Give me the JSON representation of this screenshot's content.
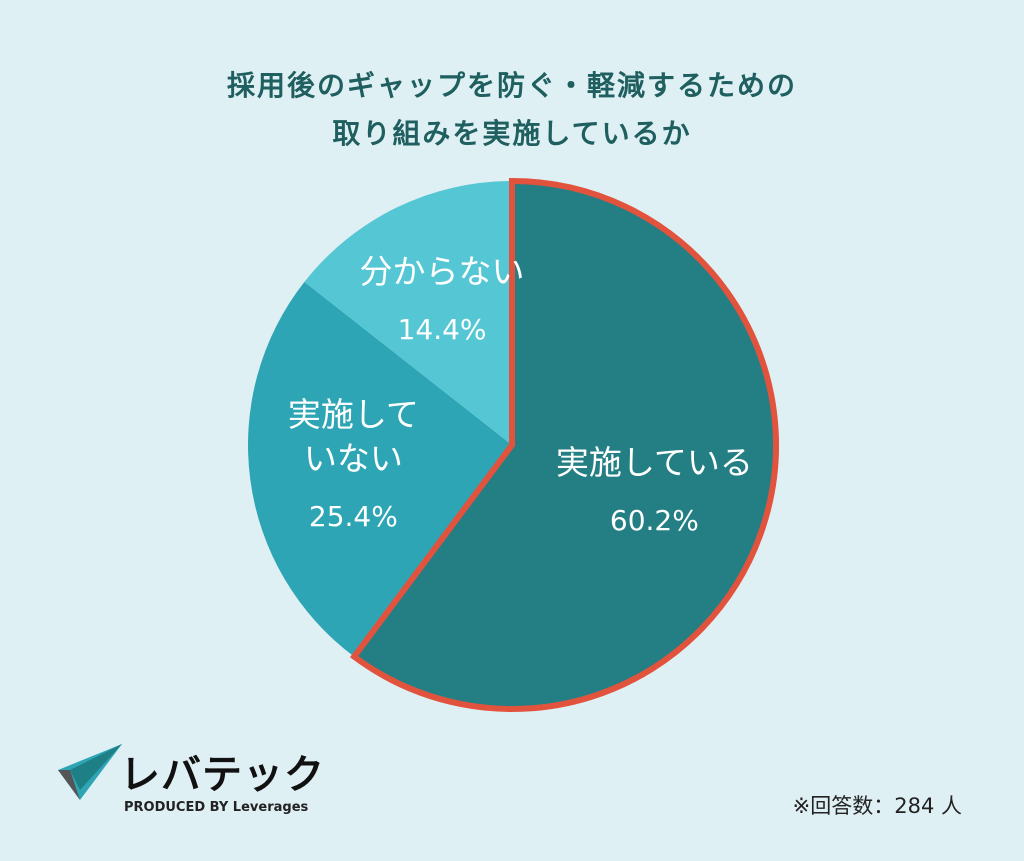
{
  "chart_data": {
    "type": "pie",
    "title": [
      "採用後のギャップを防ぐ・軽減するための",
      "取り組みを実施しているか"
    ],
    "categories": [
      "実施している",
      "実施していない",
      "分からない"
    ],
    "values": [
      60.2,
      25.4,
      14.4
    ],
    "value_labels": [
      "60.2%",
      "25.4%",
      "14.4%"
    ],
    "colors": [
      "#237f83",
      "#2ea5b5",
      "#55c6d4"
    ],
    "outlines": [
      "#e2533e",
      null,
      null
    ],
    "note": "※回答数：284 人"
  },
  "logo": {
    "name": "レバテック",
    "tagline": "PRODUCED BY Leverages"
  }
}
